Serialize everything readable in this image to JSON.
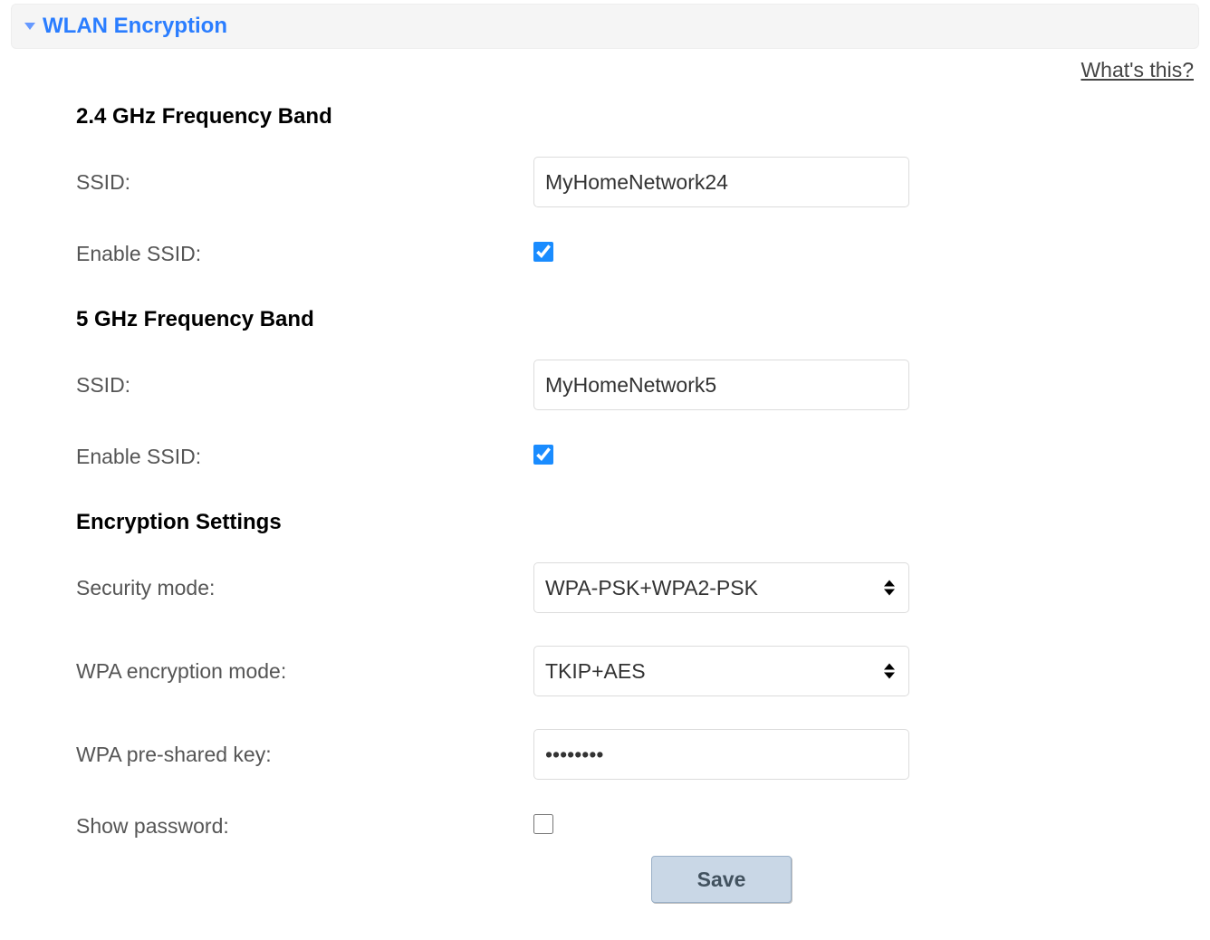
{
  "section": {
    "title": "WLAN Encryption"
  },
  "help_link": "What's this?",
  "band24": {
    "heading": "2.4 GHz Frequency Band",
    "ssid_label": "SSID:",
    "ssid_value": "MyHomeNetwork24",
    "enable_label": "Enable SSID:",
    "enable_checked": true
  },
  "band5": {
    "heading": "5 GHz Frequency Band",
    "ssid_label": "SSID:",
    "ssid_value": "MyHomeNetwork5",
    "enable_label": "Enable SSID:",
    "enable_checked": true
  },
  "encryption": {
    "heading": "Encryption Settings",
    "security_mode_label": "Security mode:",
    "security_mode_value": "WPA-PSK+WPA2-PSK",
    "wpa_mode_label": "WPA encryption mode:",
    "wpa_mode_value": "TKIP+AES",
    "psk_label": "WPA pre-shared key:",
    "psk_value": "********",
    "show_password_label": "Show password:",
    "show_password_checked": false
  },
  "actions": {
    "save_label": "Save"
  },
  "colors": {
    "header_bg": "#f5f5f5",
    "title_color": "#2a7dff",
    "label_color": "#555555",
    "input_border": "#dcdcdc",
    "button_bg": "#c9d7e6",
    "button_border": "#9ab0c7",
    "button_text": "#42525f",
    "checkbox_accent": "#1a8cff"
  }
}
